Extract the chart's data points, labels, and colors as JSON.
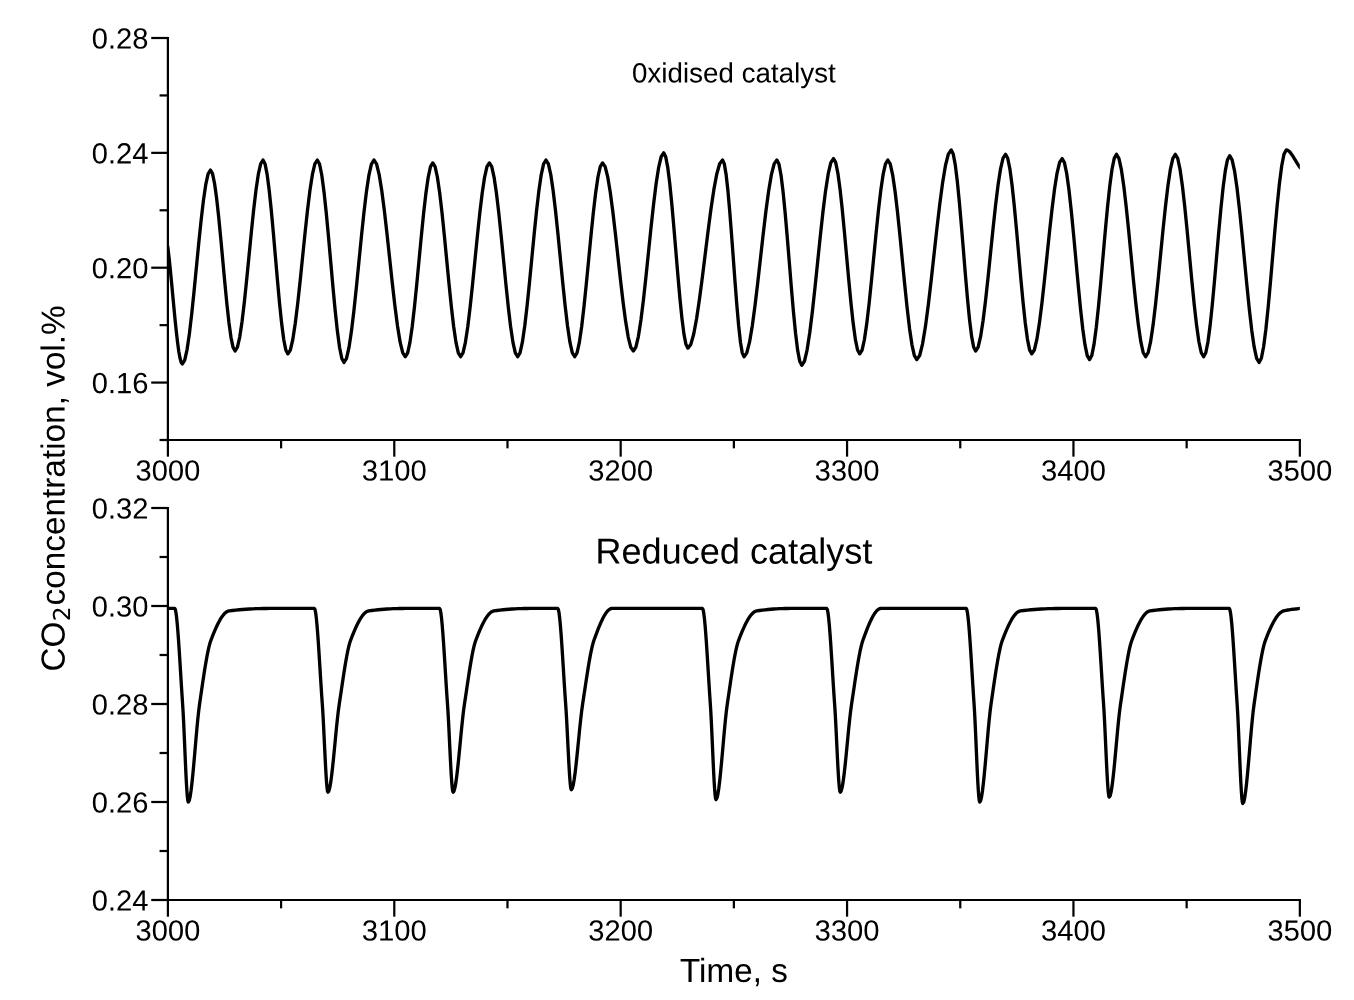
{
  "chart_data": [
    {
      "type": "line",
      "title": "0xidised catalyst",
      "xlim": [
        3000,
        3500
      ],
      "ylim": [
        0.14,
        0.28
      ],
      "xticks": [
        3000,
        {
          "value": 3050,
          "label": null
        },
        3100,
        {
          "value": 3150,
          "label": null
        },
        3200,
        {
          "value": 3250,
          "label": null
        },
        3300,
        {
          "value": 3350,
          "label": null
        },
        3400,
        {
          "value": 3450,
          "label": null
        },
        3500
      ],
      "yticks": [
        {
          "value": 0.14,
          "label": null
        },
        0.16,
        {
          "value": 0.18,
          "label": null
        },
        {
          "value": 0.2,
          "label": "0.20"
        },
        {
          "value": 0.22,
          "label": null
        },
        0.24,
        {
          "value": 0.26,
          "label": null
        },
        0.28
      ],
      "grid": false,
      "legend": false,
      "marker": "none",
      "line_style": "solid",
      "series": [
        {
          "color": "#000000",
          "x": [
            3000,
            3006.4,
            3018.8,
            3029.7,
            3042,
            3053,
            3066,
            3077.8,
            3091,
            3104.9,
            3117,
            3129.3,
            3142,
            3154.5,
            3167,
            3179.7,
            3192,
            3205.6,
            3219,
            3229.7,
            3245,
            3254.5,
            3269,
            3280,
            3294,
            3305.6,
            3318,
            3330.8,
            3346,
            3356.8,
            3370,
            3381.6,
            3395,
            3407.1,
            3419,
            3431.9,
            3445,
            3457.5,
            3469,
            3482,
            3494,
            3500
          ],
          "values": [
            0.207,
            0.1665,
            0.234,
            0.171,
            0.2375,
            0.17,
            0.2375,
            0.167,
            0.2375,
            0.169,
            0.2365,
            0.169,
            0.2365,
            0.169,
            0.2375,
            0.169,
            0.2365,
            0.171,
            0.24,
            0.172,
            0.2375,
            0.169,
            0.2375,
            0.166,
            0.238,
            0.17,
            0.2375,
            0.168,
            0.241,
            0.171,
            0.2395,
            0.17,
            0.238,
            0.168,
            0.2395,
            0.169,
            0.2395,
            0.169,
            0.239,
            0.167,
            0.241,
            0.235
          ]
        }
      ]
    },
    {
      "type": "line",
      "title": "Reduced catalyst",
      "xlabel": "Time, s",
      "ylabel": "CO$_{2}$concentration, vol.%",
      "xlim": [
        3000,
        3500
      ],
      "ylim": [
        0.24,
        0.32
      ],
      "xticks": [
        3000,
        {
          "value": 3050,
          "label": null
        },
        3100,
        {
          "value": 3150,
          "label": null
        },
        3200,
        {
          "value": 3250,
          "label": null
        },
        3300,
        {
          "value": 3350,
          "label": null
        },
        3400,
        {
          "value": 3450,
          "label": null
        },
        3500
      ],
      "yticks": [
        0.24,
        {
          "value": 0.25,
          "label": null
        },
        0.26,
        {
          "value": 0.27,
          "label": null
        },
        0.28,
        {
          "value": 0.29,
          "label": null
        },
        {
          "value": 0.3,
          "label": "0.30"
        },
        {
          "value": 0.31,
          "label": null
        },
        0.32
      ],
      "grid": false,
      "legend": false,
      "marker": "none",
      "line_style": "solid",
      "series": [
        {
          "color": "#000000",
          "x": [
            3000,
            3003,
            3006.5,
            3009,
            3014,
            3019,
            3027,
            3045,
            3064.7,
            3068.2,
            3070.7,
            3075.7,
            3080.7,
            3088.7,
            3105,
            3120,
            3123.5,
            3126,
            3131,
            3136,
            3144,
            3160,
            3172.2,
            3175.7,
            3178.2,
            3183.2,
            3188.2,
            3196.2,
            3215,
            3236.1,
            3239.6,
            3242.1,
            3247.1,
            3252.1,
            3260.1,
            3275,
            3291,
            3294.5,
            3297,
            3302,
            3307,
            3315,
            3335,
            3352.6,
            3356.1,
            3358.6,
            3363.6,
            3368.6,
            3376.6,
            3395,
            3409.8,
            3413.3,
            3415.8,
            3420.8,
            3425.8,
            3433.8,
            3450,
            3468.8,
            3472.3,
            3474.8,
            3479.8,
            3484.8,
            3492.8,
            3500
          ],
          "values": [
            0.2995,
            0.2995,
            0.28,
            0.26,
            0.28,
            0.293,
            0.299,
            0.2995,
            0.2995,
            0.28,
            0.262,
            0.28,
            0.293,
            0.299,
            0.2995,
            0.2995,
            0.28,
            0.262,
            0.28,
            0.293,
            0.299,
            0.2995,
            0.2995,
            0.28,
            0.2625,
            0.28,
            0.293,
            0.2995,
            0.2995,
            0.2995,
            0.28,
            0.2605,
            0.28,
            0.293,
            0.299,
            0.2995,
            0.2995,
            0.28,
            0.262,
            0.28,
            0.293,
            0.2995,
            0.2995,
            0.2995,
            0.28,
            0.26,
            0.28,
            0.293,
            0.299,
            0.2995,
            0.2995,
            0.28,
            0.261,
            0.28,
            0.293,
            0.299,
            0.2995,
            0.2995,
            0.28,
            0.2597,
            0.28,
            0.293,
            0.299,
            0.2995
          ]
        }
      ]
    }
  ]
}
